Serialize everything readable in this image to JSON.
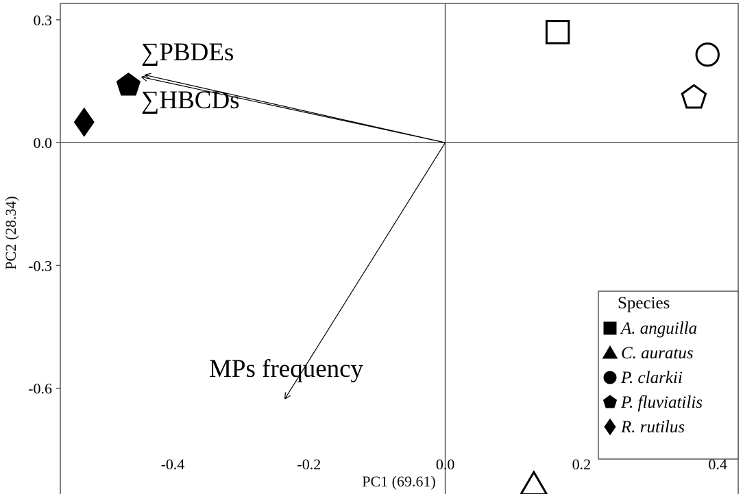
{
  "chart_data": {
    "type": "scatter",
    "title": "",
    "xlabel": "PC1 (69.61)",
    "ylabel": "PC2 (28.34)",
    "xlim": [
      -0.565,
      0.43
    ],
    "ylim": [
      -0.86,
      0.34
    ],
    "x_ticks": [
      -0.4,
      -0.2,
      0.0,
      0.2,
      0.4
    ],
    "y_ticks": [
      0.3,
      0.0,
      -0.3,
      -0.6
    ],
    "x_tick_labels": [
      "-0.4",
      "-0.2",
      "0.0",
      "0.2",
      "0.4"
    ],
    "y_tick_labels": [
      "0.3",
      "0.0",
      "-0.3",
      "-0.6"
    ],
    "zero_lines": true,
    "grid": false,
    "points": [
      {
        "species": "R. rutilus",
        "shape": "diamond",
        "filled": true,
        "x": -0.53,
        "y": 0.05
      },
      {
        "species": "P. fluviatilis",
        "shape": "pentagon",
        "filled": true,
        "x": -0.465,
        "y": 0.14
      },
      {
        "species": "A. anguilla",
        "shape": "square",
        "filled": false,
        "x": 0.165,
        "y": 0.27
      },
      {
        "species": "P. clarkii",
        "shape": "circle",
        "filled": false,
        "x": 0.385,
        "y": 0.215
      },
      {
        "species": "P. fluviatilis",
        "shape": "pentagon",
        "filled": false,
        "x": 0.365,
        "y": 0.11
      },
      {
        "species": "C. auratus",
        "shape": "triangle",
        "filled": false,
        "x": 0.13,
        "y": -0.835
      }
    ],
    "vectors": [
      {
        "label": "∑PBDEs",
        "x": -0.445,
        "y": 0.16
      },
      {
        "label": "∑HBCDs",
        "x": -0.44,
        "y": 0.165
      },
      {
        "label": "MPs frequency",
        "x": -0.235,
        "y": -0.625
      }
    ],
    "legend": {
      "title": "Species",
      "position": "bottom-right",
      "items": [
        {
          "shape": "square",
          "label": "A. anguilla"
        },
        {
          "shape": "triangle",
          "label": "C. auratus"
        },
        {
          "shape": "circle",
          "label": "P. clarkii"
        },
        {
          "shape": "pentagon",
          "label": "P. fluviatilis"
        },
        {
          "shape": "diamond",
          "label": "R. rutilus"
        }
      ]
    }
  }
}
